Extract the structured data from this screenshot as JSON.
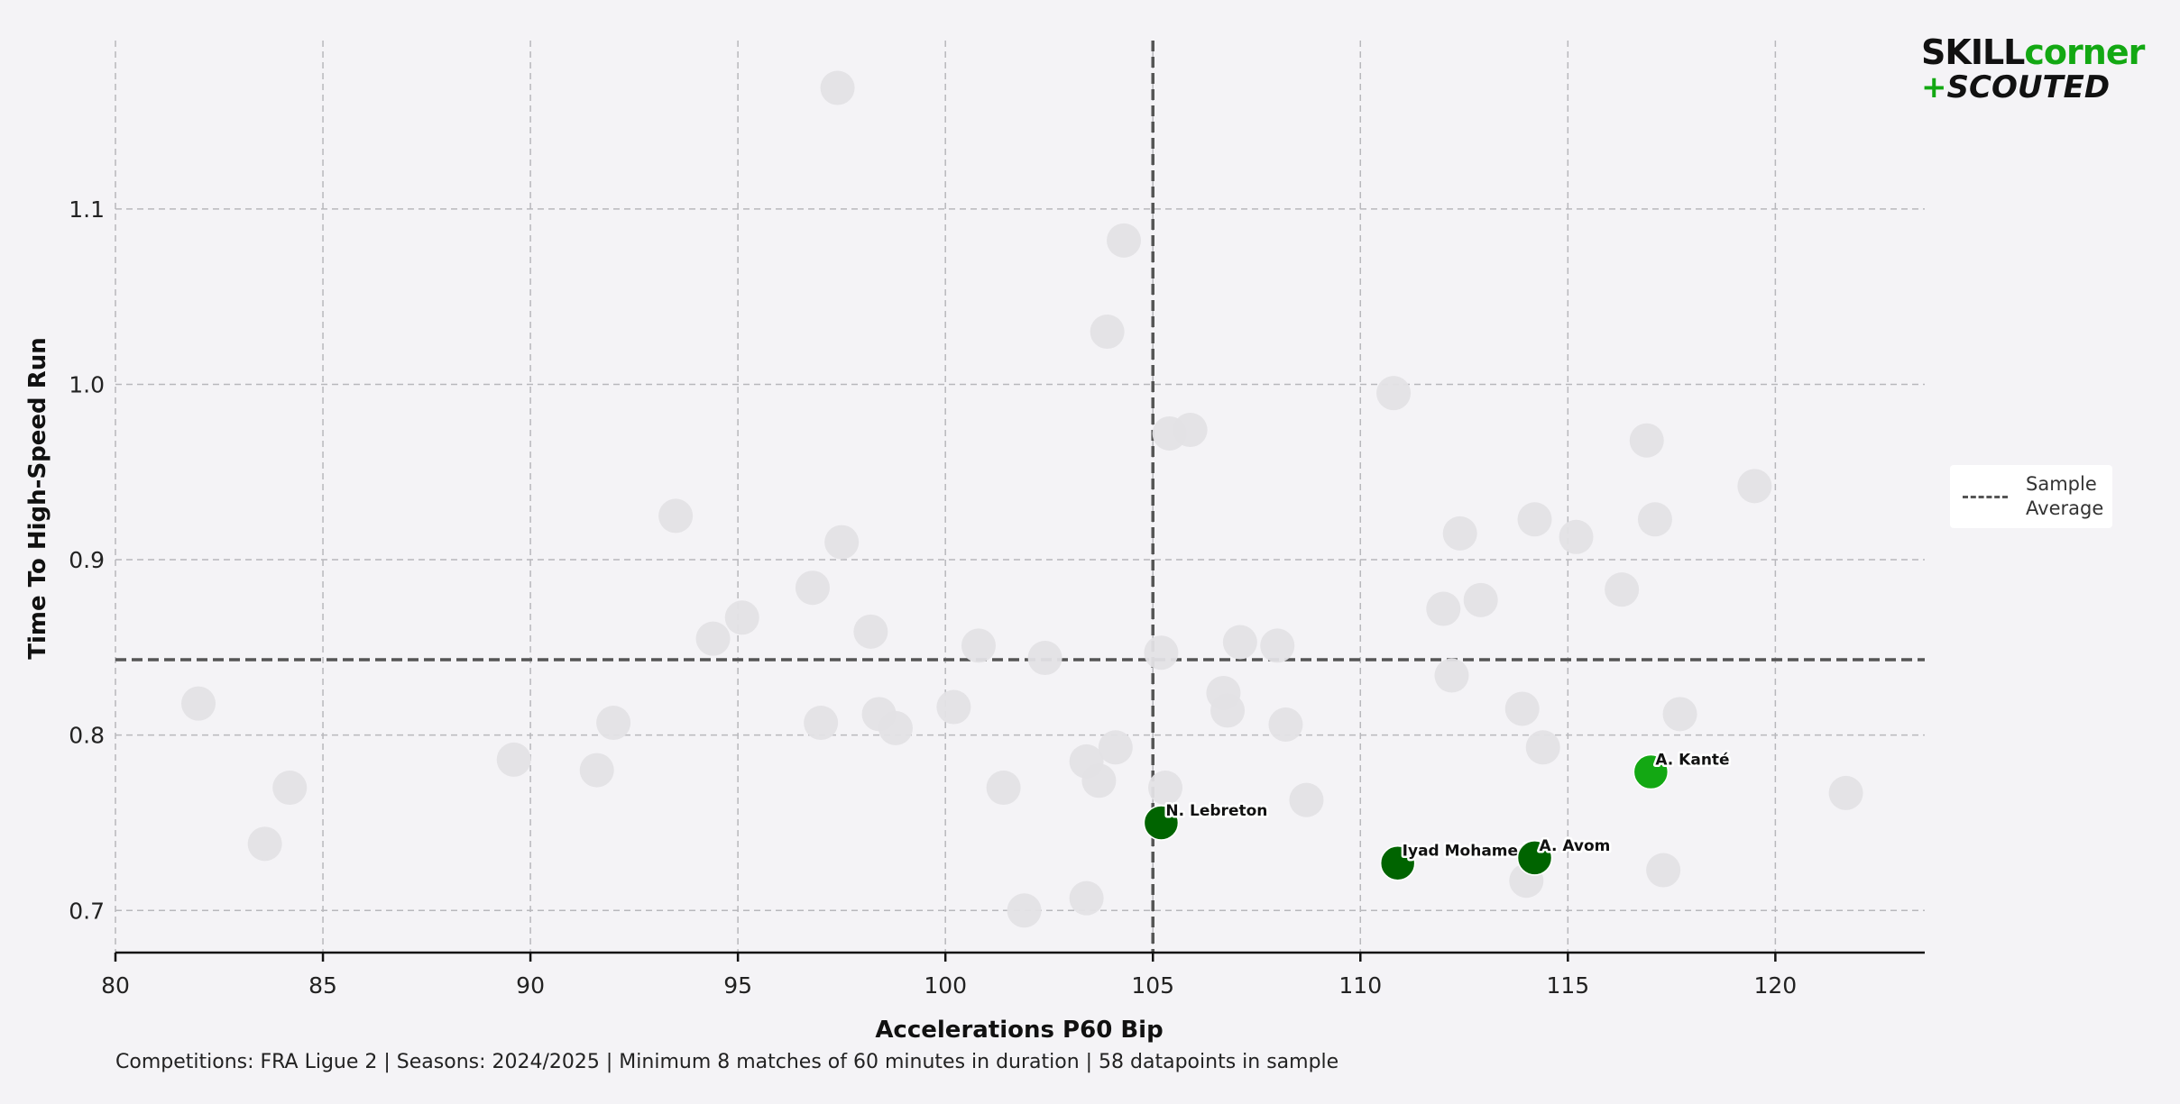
{
  "chart_data": {
    "type": "scatter",
    "title": "",
    "xlabel": "Accelerations P60 Bip",
    "ylabel": "Time To High-Speed Run",
    "xlim": [
      80,
      123.6
    ],
    "ylim": [
      0.676,
      1.196
    ],
    "xticks": [
      "80",
      "85",
      "90",
      "95",
      "100",
      "105",
      "110",
      "115",
      "120"
    ],
    "yticks": [
      "0.7",
      "0.8",
      "0.9",
      "1.0",
      "1.1"
    ],
    "grid": true,
    "sample_average": {
      "x": 105.0,
      "y": 0.843
    },
    "legend": {
      "label": "Sample Average",
      "position": "right"
    },
    "background_points": [
      [
        82.0,
        0.818
      ],
      [
        83.6,
        0.738
      ],
      [
        84.2,
        0.77
      ],
      [
        89.6,
        0.786
      ],
      [
        91.6,
        0.78
      ],
      [
        92.0,
        0.807
      ],
      [
        93.5,
        0.925
      ],
      [
        94.4,
        0.855
      ],
      [
        95.1,
        0.867
      ],
      [
        96.8,
        0.884
      ],
      [
        97.0,
        0.807
      ],
      [
        97.4,
        1.169
      ],
      [
        97.5,
        0.91
      ],
      [
        98.2,
        0.859
      ],
      [
        98.4,
        0.812
      ],
      [
        98.8,
        0.804
      ],
      [
        100.2,
        0.816
      ],
      [
        100.8,
        0.851
      ],
      [
        101.4,
        0.77
      ],
      [
        101.9,
        0.7
      ],
      [
        102.4,
        0.844
      ],
      [
        103.4,
        0.785
      ],
      [
        103.4,
        0.707
      ],
      [
        103.7,
        0.774
      ],
      [
        103.9,
        1.03
      ],
      [
        104.1,
        0.793
      ],
      [
        104.3,
        1.082
      ],
      [
        105.2,
        0.847
      ],
      [
        105.3,
        0.77
      ],
      [
        105.4,
        0.972
      ],
      [
        105.9,
        0.974
      ],
      [
        106.7,
        0.824
      ],
      [
        106.8,
        0.814
      ],
      [
        107.1,
        0.853
      ],
      [
        108.0,
        0.851
      ],
      [
        108.2,
        0.806
      ],
      [
        108.7,
        0.763
      ],
      [
        110.8,
        0.995
      ],
      [
        112.0,
        0.872
      ],
      [
        112.2,
        0.834
      ],
      [
        112.4,
        0.915
      ],
      [
        112.9,
        0.877
      ],
      [
        113.9,
        0.815
      ],
      [
        114.0,
        0.717
      ],
      [
        114.2,
        0.923
      ],
      [
        114.4,
        0.793
      ],
      [
        115.2,
        0.913
      ],
      [
        116.3,
        0.883
      ],
      [
        116.9,
        0.968
      ],
      [
        117.1,
        0.923
      ],
      [
        117.3,
        0.723
      ],
      [
        117.7,
        0.812
      ],
      [
        119.5,
        0.942
      ],
      [
        121.7,
        0.767
      ]
    ],
    "highlighted_points": [
      {
        "name": "N. Lebreton",
        "x": 105.2,
        "y": 0.75,
        "color": "#006400"
      },
      {
        "name": "Iyad Mohamed",
        "x": 110.9,
        "y": 0.727,
        "color": "#006400"
      },
      {
        "name": "A. Avom",
        "x": 114.2,
        "y": 0.73,
        "color": "#006400"
      },
      {
        "name": "A. Kanté",
        "x": 117.0,
        "y": 0.779,
        "color": "#13a813"
      }
    ],
    "background_color": "#e3e2e5",
    "average_line_color": "#555555"
  },
  "legend_label": "Sample Average",
  "footnote": "Competitions: FRA Ligue 2 | Seasons: 2024/2025 | Minimum 8 matches of 60 minutes in duration | 58 datapoints in sample",
  "logo": {
    "skill": "SKILL",
    "corner": "corner",
    "plus": "+",
    "scouted": "SCOUTED",
    "color_dark": "#111111",
    "color_green": "#13a813"
  }
}
